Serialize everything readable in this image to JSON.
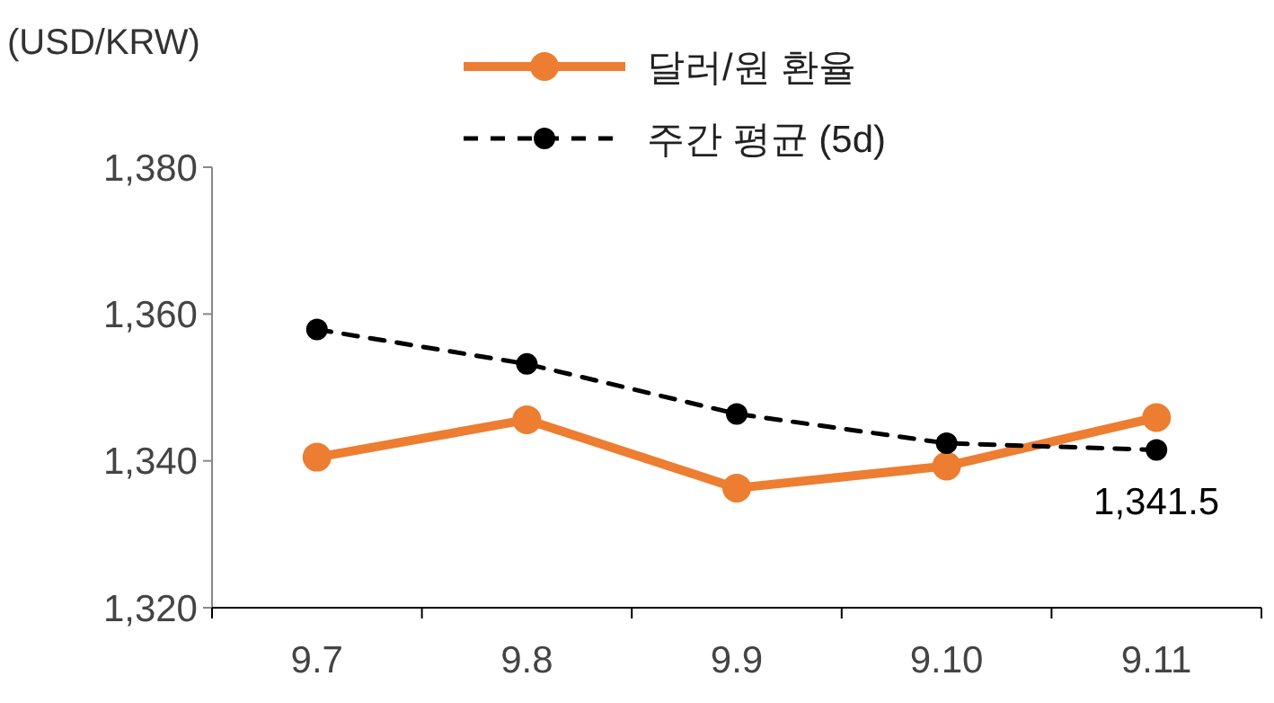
{
  "chart_data": {
    "type": "line",
    "ylabel": "(USD/KRW)",
    "categories": [
      "9.7",
      "9.8",
      "9.9",
      "9.10",
      "9.11"
    ],
    "series": [
      {
        "name": "달러/원 환율",
        "color": "#ed7d31",
        "values": [
          1340.5,
          1345.6,
          1336.3,
          1339.3,
          1345.9
        ],
        "line_style": "solid"
      },
      {
        "name": "주간 평균 (5d)",
        "color": "#000000",
        "values": [
          1357.9,
          1353.2,
          1346.4,
          1342.4,
          1341.5
        ],
        "line_style": "dashed"
      }
    ],
    "ylim": [
      1320,
      1380
    ],
    "yticks": [
      {
        "value": 1320,
        "label": "1,320"
      },
      {
        "value": 1340,
        "label": "1,340"
      },
      {
        "value": 1360,
        "label": "1,360"
      },
      {
        "value": 1380,
        "label": "1,380"
      }
    ],
    "annotations": [
      {
        "text": "1,341.5",
        "x": "9.11",
        "y": 1341.5
      }
    ],
    "marker": "circle",
    "legend": "top",
    "grid": false
  }
}
